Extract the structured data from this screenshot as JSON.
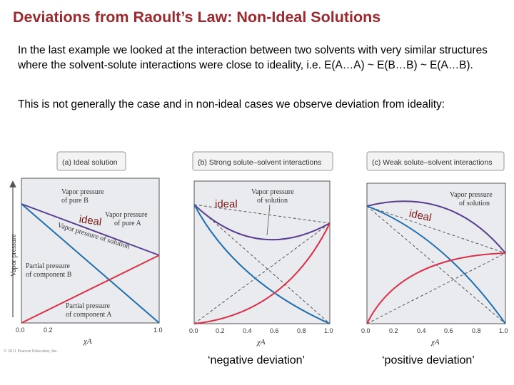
{
  "title": "Deviations from Raoult’s Law: Non-Ideal Solutions",
  "paragraph1": "In the last example we looked at the interaction between two solvents with very similar structures where the solvent-solute interactions were close to ideality, i.e. E(A…A) ~ E(B…B) ~ E(A…B).",
  "paragraph2": "This is not generally the case and in non-ideal cases we observe deviation from ideality:",
  "panels": {
    "a": {
      "tab": "(a) Ideal solution"
    },
    "b": {
      "tab": "(b) Strong solute–solvent interactions"
    },
    "c": {
      "tab": "(c) Weak solute–solvent interactions"
    }
  },
  "labels": {
    "y_axis": "Vapor pressure",
    "x_axis": "χA",
    "vp_pure_b": [
      "Vapor pressure",
      "of pure B"
    ],
    "vp_pure_a": [
      "Vapor pressure",
      "of pure A"
    ],
    "vp_solution_slanted": "Vapor pressure of solution",
    "vp_solution": [
      "Vapor pressure",
      "of solution"
    ],
    "partial_b": [
      "Partial pressure",
      "of component B"
    ],
    "partial_a": [
      "Partial pressure",
      "of component A"
    ],
    "ideal": "ideal",
    "copyright": "© 2011 Pearson Education, Inc."
  },
  "x_ticks": [
    "0.0",
    "0.2",
    "0.4",
    "0.6",
    "0.8",
    "1.0"
  ],
  "captions": {
    "negative": "‘negative deviation’",
    "positive": "‘positive deviation’"
  },
  "colors": {
    "title": "#9a2a2e",
    "total_pressure": "#5a3f8f",
    "component_b": "#1f6fae",
    "component_a": "#d9314a",
    "ideal_label": "#7a1a1a"
  }
}
